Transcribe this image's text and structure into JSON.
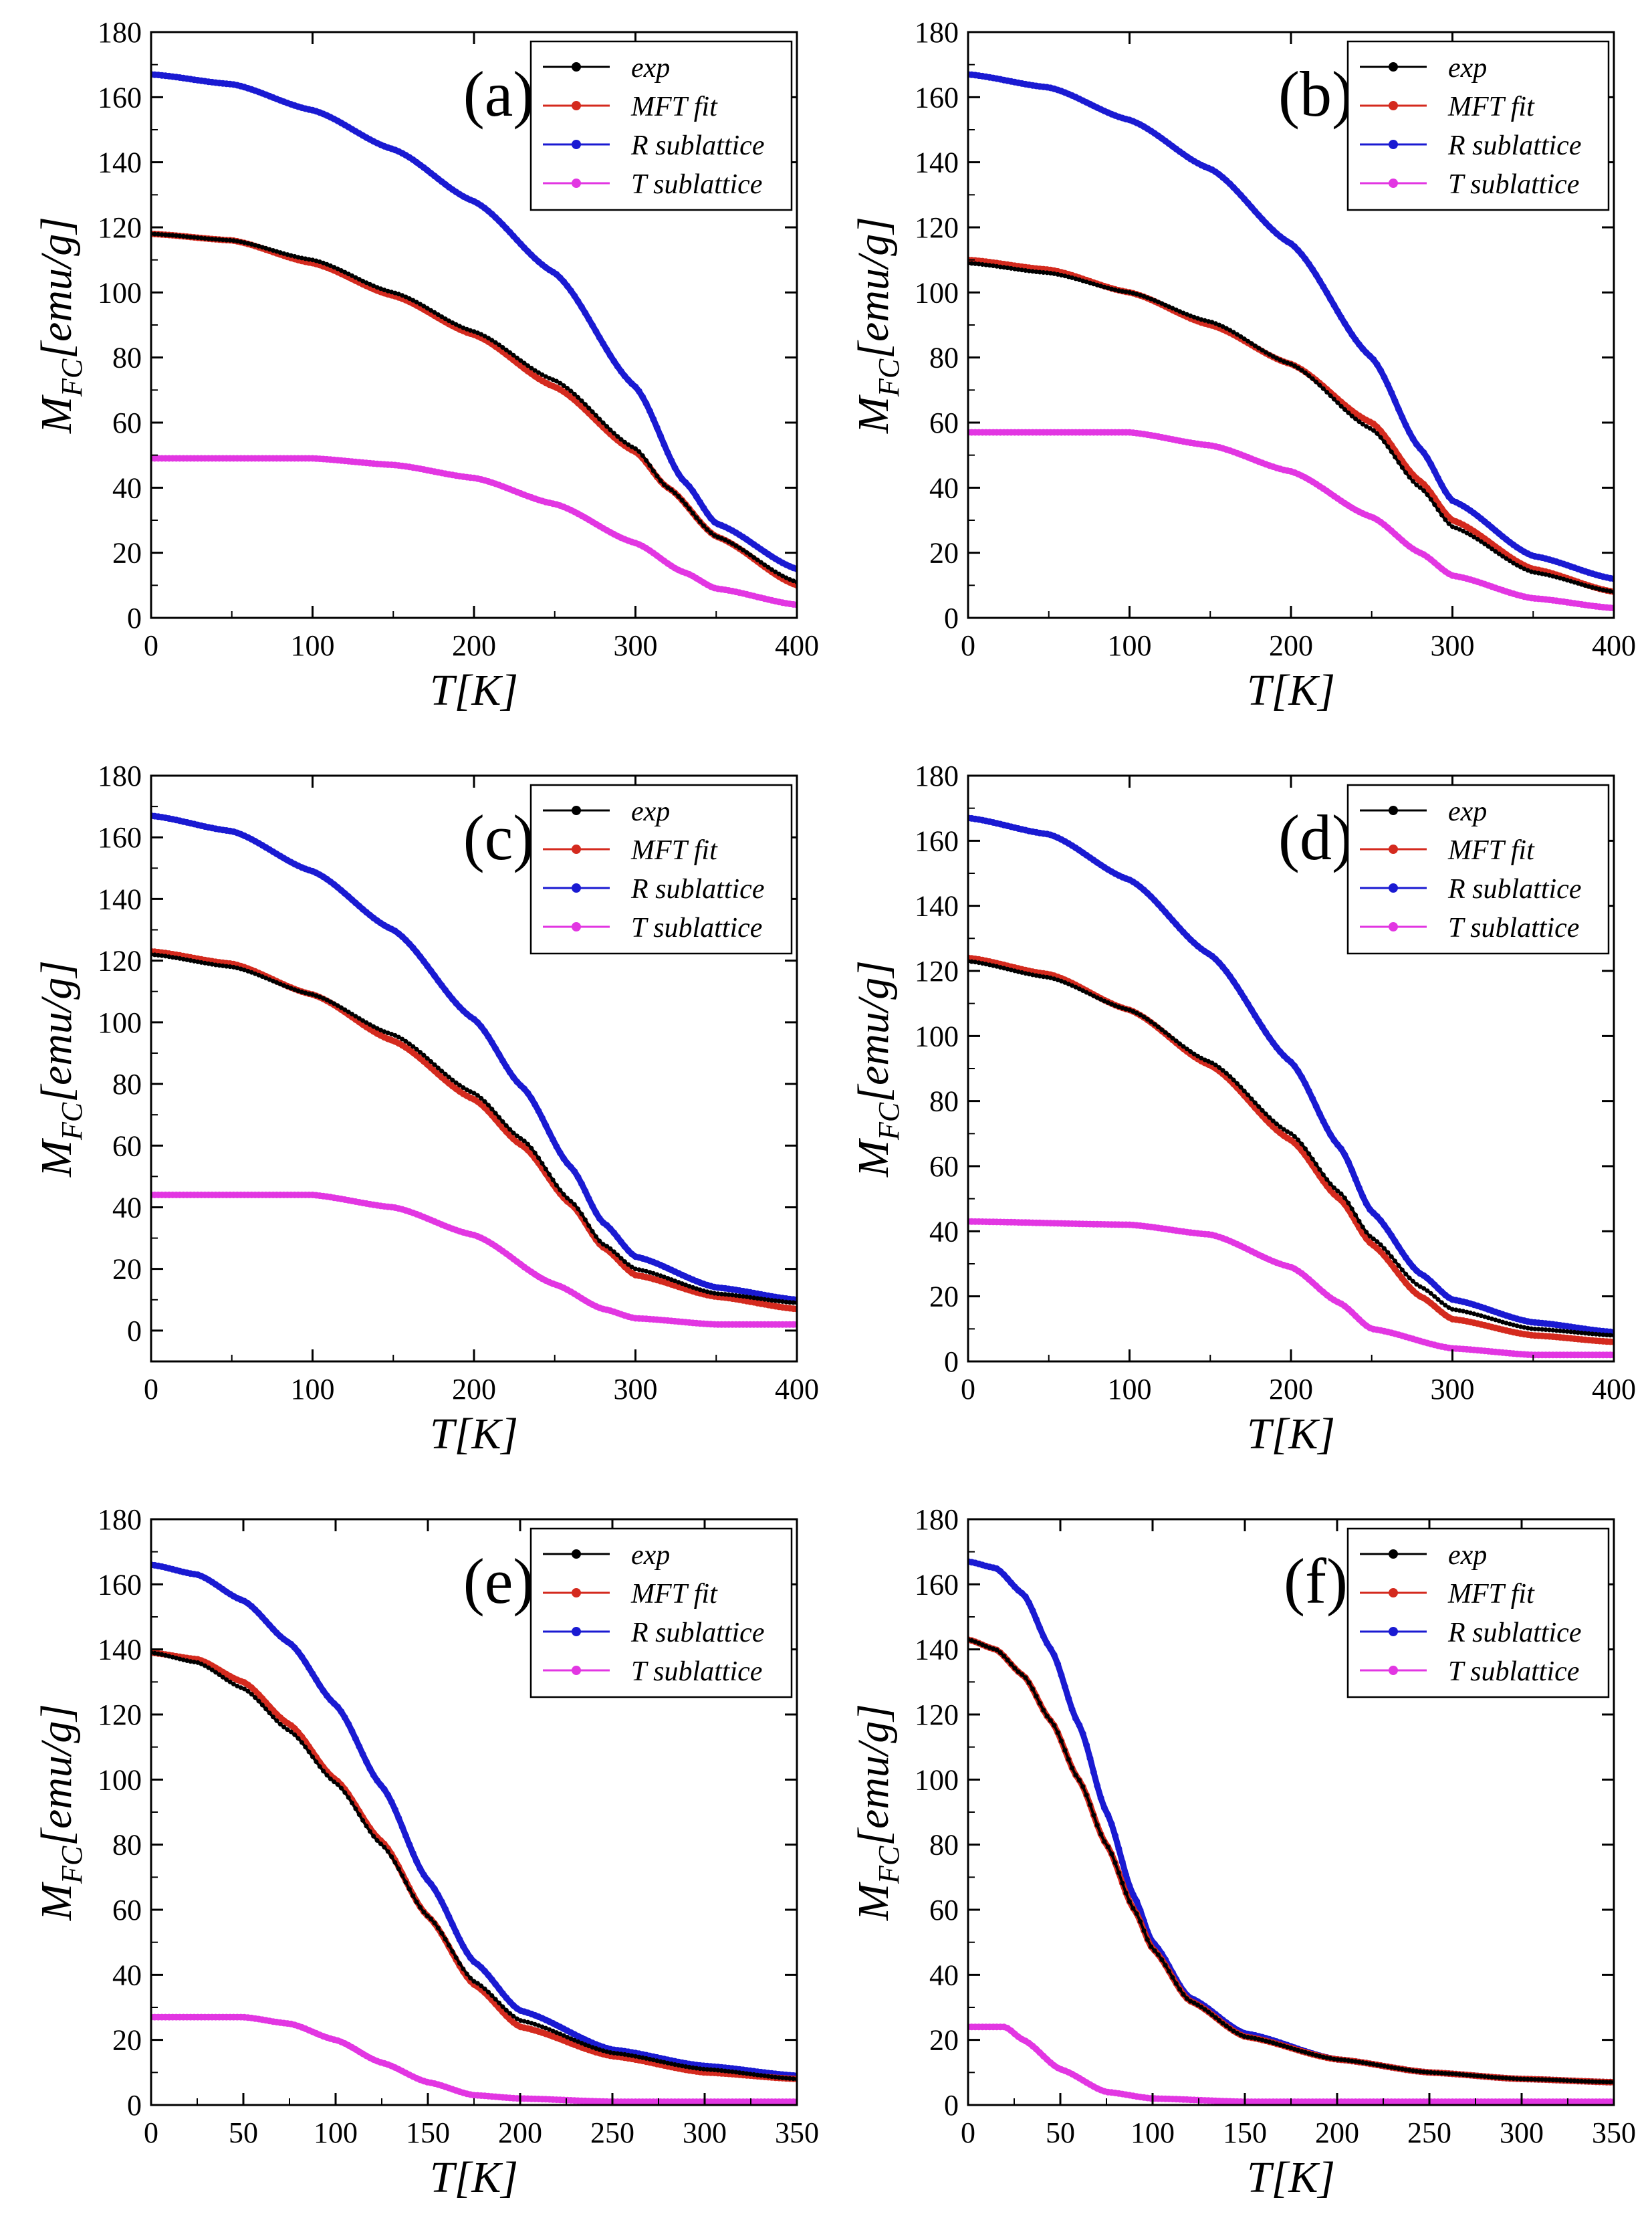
{
  "colors": {
    "exp": "#000000",
    "fit": "#d42a1e",
    "R": "#1a1ad2",
    "T": "#e236e2",
    "axis": "#000000",
    "background": "#ffffff"
  },
  "common": {
    "ylabel_main": "M",
    "ylabel_sub": "FC",
    "ylabel_unit": "[emu/g]",
    "xlabel": "T[K]"
  },
  "chart_data": [
    {
      "type": "line",
      "panel": "(a)",
      "xlim": [
        0,
        400
      ],
      "ylim": [
        0,
        180
      ],
      "yticks": [
        0,
        20,
        40,
        60,
        80,
        100,
        120,
        140,
        160,
        180
      ],
      "xticks": [
        0,
        100,
        200,
        300,
        400
      ],
      "legend": [
        "exp",
        "MFT fit",
        "R sublattice",
        "T sublattice"
      ],
      "series": [
        {
          "name": "exp",
          "key": "exp",
          "x": [
            0,
            50,
            100,
            150,
            200,
            250,
            300,
            320,
            350,
            400
          ],
          "values": [
            118,
            116,
            110,
            100,
            88,
            73,
            52,
            40,
            25,
            11
          ]
        },
        {
          "name": "MFT fit",
          "key": "fit",
          "x": [
            0,
            50,
            100,
            150,
            200,
            250,
            300,
            320,
            350,
            400
          ],
          "values": [
            118,
            116,
            109,
            99,
            87,
            71,
            51,
            40,
            25,
            10
          ]
        },
        {
          "name": "R sublattice",
          "key": "R",
          "x": [
            0,
            50,
            100,
            150,
            200,
            250,
            300,
            330,
            350,
            400
          ],
          "values": [
            167,
            164,
            156,
            144,
            128,
            106,
            71,
            42,
            29,
            15
          ]
        },
        {
          "name": "T sublattice",
          "key": "T",
          "x": [
            0,
            100,
            150,
            200,
            250,
            300,
            330,
            350,
            400
          ],
          "values": [
            49,
            49,
            47,
            43,
            35,
            23,
            14,
            9,
            4
          ]
        }
      ]
    },
    {
      "type": "line",
      "panel": "(b)",
      "xlim": [
        0,
        400
      ],
      "ylim": [
        0,
        180
      ],
      "yticks": [
        0,
        20,
        40,
        60,
        80,
        100,
        120,
        140,
        160,
        180
      ],
      "xticks": [
        0,
        100,
        200,
        300,
        400
      ],
      "legend": [
        "exp",
        "MFT fit",
        "R sublattice",
        "T sublattice"
      ],
      "series": [
        {
          "name": "exp",
          "key": "exp",
          "x": [
            0,
            50,
            100,
            150,
            200,
            250,
            280,
            300,
            350,
            400
          ],
          "values": [
            109,
            106,
            100,
            91,
            78,
            58,
            40,
            28,
            14,
            8
          ]
        },
        {
          "name": "MFT fit",
          "key": "fit",
          "x": [
            0,
            50,
            100,
            150,
            200,
            250,
            280,
            300,
            350,
            400
          ],
          "values": [
            110,
            107,
            100,
            90,
            78,
            60,
            42,
            30,
            15,
            8
          ]
        },
        {
          "name": "R sublattice",
          "key": "R",
          "x": [
            0,
            50,
            100,
            150,
            200,
            250,
            280,
            300,
            350,
            400
          ],
          "values": [
            167,
            163,
            153,
            138,
            115,
            80,
            52,
            36,
            19,
            12
          ]
        },
        {
          "name": "T sublattice",
          "key": "T",
          "x": [
            0,
            100,
            150,
            200,
            250,
            280,
            300,
            350,
            400
          ],
          "values": [
            57,
            57,
            53,
            45,
            31,
            20,
            13,
            6,
            3
          ]
        }
      ]
    },
    {
      "type": "line",
      "panel": "(c)",
      "xlim": [
        0,
        400
      ],
      "ylim": [
        -10,
        180
      ],
      "yticks": [
        0,
        20,
        40,
        60,
        80,
        100,
        120,
        140,
        160,
        180
      ],
      "xticks": [
        0,
        100,
        200,
        300,
        400
      ],
      "legend": [
        "exp",
        "MFT fit",
        "R sublattice",
        "T sublattice"
      ],
      "series": [
        {
          "name": "exp",
          "key": "exp",
          "x": [
            0,
            50,
            100,
            150,
            200,
            230,
            260,
            280,
            300,
            350,
            400
          ],
          "values": [
            122,
            118,
            109,
            96,
            77,
            62,
            42,
            28,
            20,
            12,
            9
          ]
        },
        {
          "name": "MFT fit",
          "key": "fit",
          "x": [
            0,
            50,
            100,
            150,
            200,
            230,
            260,
            280,
            300,
            350,
            400
          ],
          "values": [
            123,
            119,
            109,
            94,
            75,
            60,
            41,
            27,
            18,
            11,
            7
          ]
        },
        {
          "name": "R sublattice",
          "key": "R",
          "x": [
            0,
            50,
            100,
            150,
            200,
            230,
            260,
            280,
            300,
            350,
            400
          ],
          "values": [
            167,
            162,
            149,
            130,
            101,
            79,
            53,
            35,
            24,
            14,
            10
          ]
        },
        {
          "name": "T sublattice",
          "key": "T",
          "x": [
            0,
            100,
            150,
            200,
            250,
            280,
            300,
            350,
            400
          ],
          "values": [
            44,
            44,
            40,
            31,
            15,
            7,
            4,
            2,
            2
          ]
        }
      ]
    },
    {
      "type": "line",
      "panel": "(d)",
      "xlim": [
        0,
        400
      ],
      "ylim": [
        0,
        180
      ],
      "yticks": [
        0,
        20,
        40,
        60,
        80,
        100,
        120,
        140,
        160,
        180
      ],
      "xticks": [
        0,
        100,
        200,
        300,
        400
      ],
      "legend": [
        "exp",
        "MFT fit",
        "R sublattice",
        "T sublattice"
      ],
      "series": [
        {
          "name": "exp",
          "key": "exp",
          "x": [
            0,
            50,
            100,
            150,
            200,
            230,
            250,
            280,
            300,
            350,
            400
          ],
          "values": [
            123,
            118,
            108,
            92,
            70,
            52,
            38,
            23,
            16,
            10,
            8
          ]
        },
        {
          "name": "MFT fit",
          "key": "fit",
          "x": [
            0,
            50,
            100,
            150,
            200,
            230,
            250,
            280,
            300,
            350,
            400
          ],
          "values": [
            124,
            119,
            108,
            91,
            68,
            50,
            36,
            20,
            13,
            8,
            6
          ]
        },
        {
          "name": "R sublattice",
          "key": "R",
          "x": [
            0,
            50,
            100,
            150,
            200,
            230,
            250,
            280,
            300,
            350,
            400
          ],
          "values": [
            167,
            162,
            148,
            125,
            92,
            66,
            46,
            27,
            19,
            12,
            9
          ]
        },
        {
          "name": "T sublattice",
          "key": "T",
          "x": [
            0,
            100,
            150,
            200,
            230,
            250,
            300,
            350,
            400
          ],
          "values": [
            43,
            42,
            39,
            29,
            18,
            10,
            4,
            2,
            2
          ]
        }
      ]
    },
    {
      "type": "line",
      "panel": "(e)",
      "xlim": [
        0,
        350
      ],
      "ylim": [
        0,
        180
      ],
      "yticks": [
        0,
        20,
        40,
        60,
        80,
        100,
        120,
        140,
        160,
        180
      ],
      "xticks": [
        0,
        50,
        100,
        150,
        200,
        250,
        300,
        350
      ],
      "legend": [
        "exp",
        "MFT fit",
        "R sublattice",
        "T sublattice"
      ],
      "series": [
        {
          "name": "exp",
          "key": "exp",
          "x": [
            0,
            25,
            50,
            75,
            100,
            125,
            150,
            175,
            200,
            250,
            300,
            350
          ],
          "values": [
            139,
            136,
            128,
            115,
            99,
            80,
            58,
            38,
            26,
            16,
            11,
            8
          ]
        },
        {
          "name": "MFT fit",
          "key": "fit",
          "x": [
            0,
            25,
            50,
            75,
            100,
            125,
            150,
            175,
            200,
            250,
            300,
            350
          ],
          "values": [
            139,
            137,
            130,
            117,
            100,
            81,
            58,
            37,
            24,
            15,
            10,
            8
          ]
        },
        {
          "name": "R sublattice",
          "key": "R",
          "x": [
            0,
            25,
            50,
            75,
            100,
            125,
            150,
            175,
            200,
            250,
            300,
            350
          ],
          "values": [
            166,
            163,
            155,
            142,
            123,
            98,
            69,
            44,
            29,
            17,
            12,
            9
          ]
        },
        {
          "name": "T sublattice",
          "key": "T",
          "x": [
            0,
            50,
            75,
            100,
            125,
            150,
            175,
            200,
            250,
            350
          ],
          "values": [
            27,
            27,
            25,
            20,
            13,
            7,
            3,
            2,
            1,
            1
          ]
        }
      ]
    },
    {
      "type": "line",
      "panel": "(f)",
      "xlim": [
        0,
        350
      ],
      "ylim": [
        0,
        180
      ],
      "yticks": [
        0,
        20,
        40,
        60,
        80,
        100,
        120,
        140,
        160,
        180
      ],
      "xticks": [
        0,
        50,
        100,
        150,
        200,
        250,
        300,
        350
      ],
      "legend": [
        "exp",
        "MFT fit",
        "R sublattice",
        "T sublattice"
      ],
      "series": [
        {
          "name": "exp",
          "key": "exp",
          "x": [
            0,
            15,
            30,
            45,
            60,
            75,
            90,
            100,
            120,
            150,
            200,
            250,
            300,
            350
          ],
          "values": [
            143,
            140,
            132,
            118,
            100,
            80,
            60,
            48,
            32,
            21,
            14,
            10,
            8,
            7
          ]
        },
        {
          "name": "MFT fit",
          "key": "fit",
          "x": [
            0,
            15,
            30,
            45,
            60,
            75,
            90,
            100,
            120,
            150,
            200,
            250,
            300,
            350
          ],
          "values": [
            143,
            140,
            132,
            118,
            100,
            80,
            60,
            48,
            32,
            21,
            14,
            10,
            8,
            7
          ]
        },
        {
          "name": "R sublattice",
          "key": "R",
          "x": [
            0,
            15,
            30,
            45,
            60,
            75,
            90,
            100,
            120,
            150,
            200,
            250,
            300,
            350
          ],
          "values": [
            167,
            165,
            157,
            140,
            117,
            90,
            64,
            50,
            33,
            22,
            14,
            10,
            8,
            7
          ]
        },
        {
          "name": "T sublattice",
          "key": "T",
          "x": [
            0,
            20,
            30,
            50,
            75,
            100,
            150,
            200,
            350
          ],
          "values": [
            24,
            24,
            20,
            11,
            4,
            2,
            1,
            1,
            1
          ]
        }
      ]
    }
  ]
}
